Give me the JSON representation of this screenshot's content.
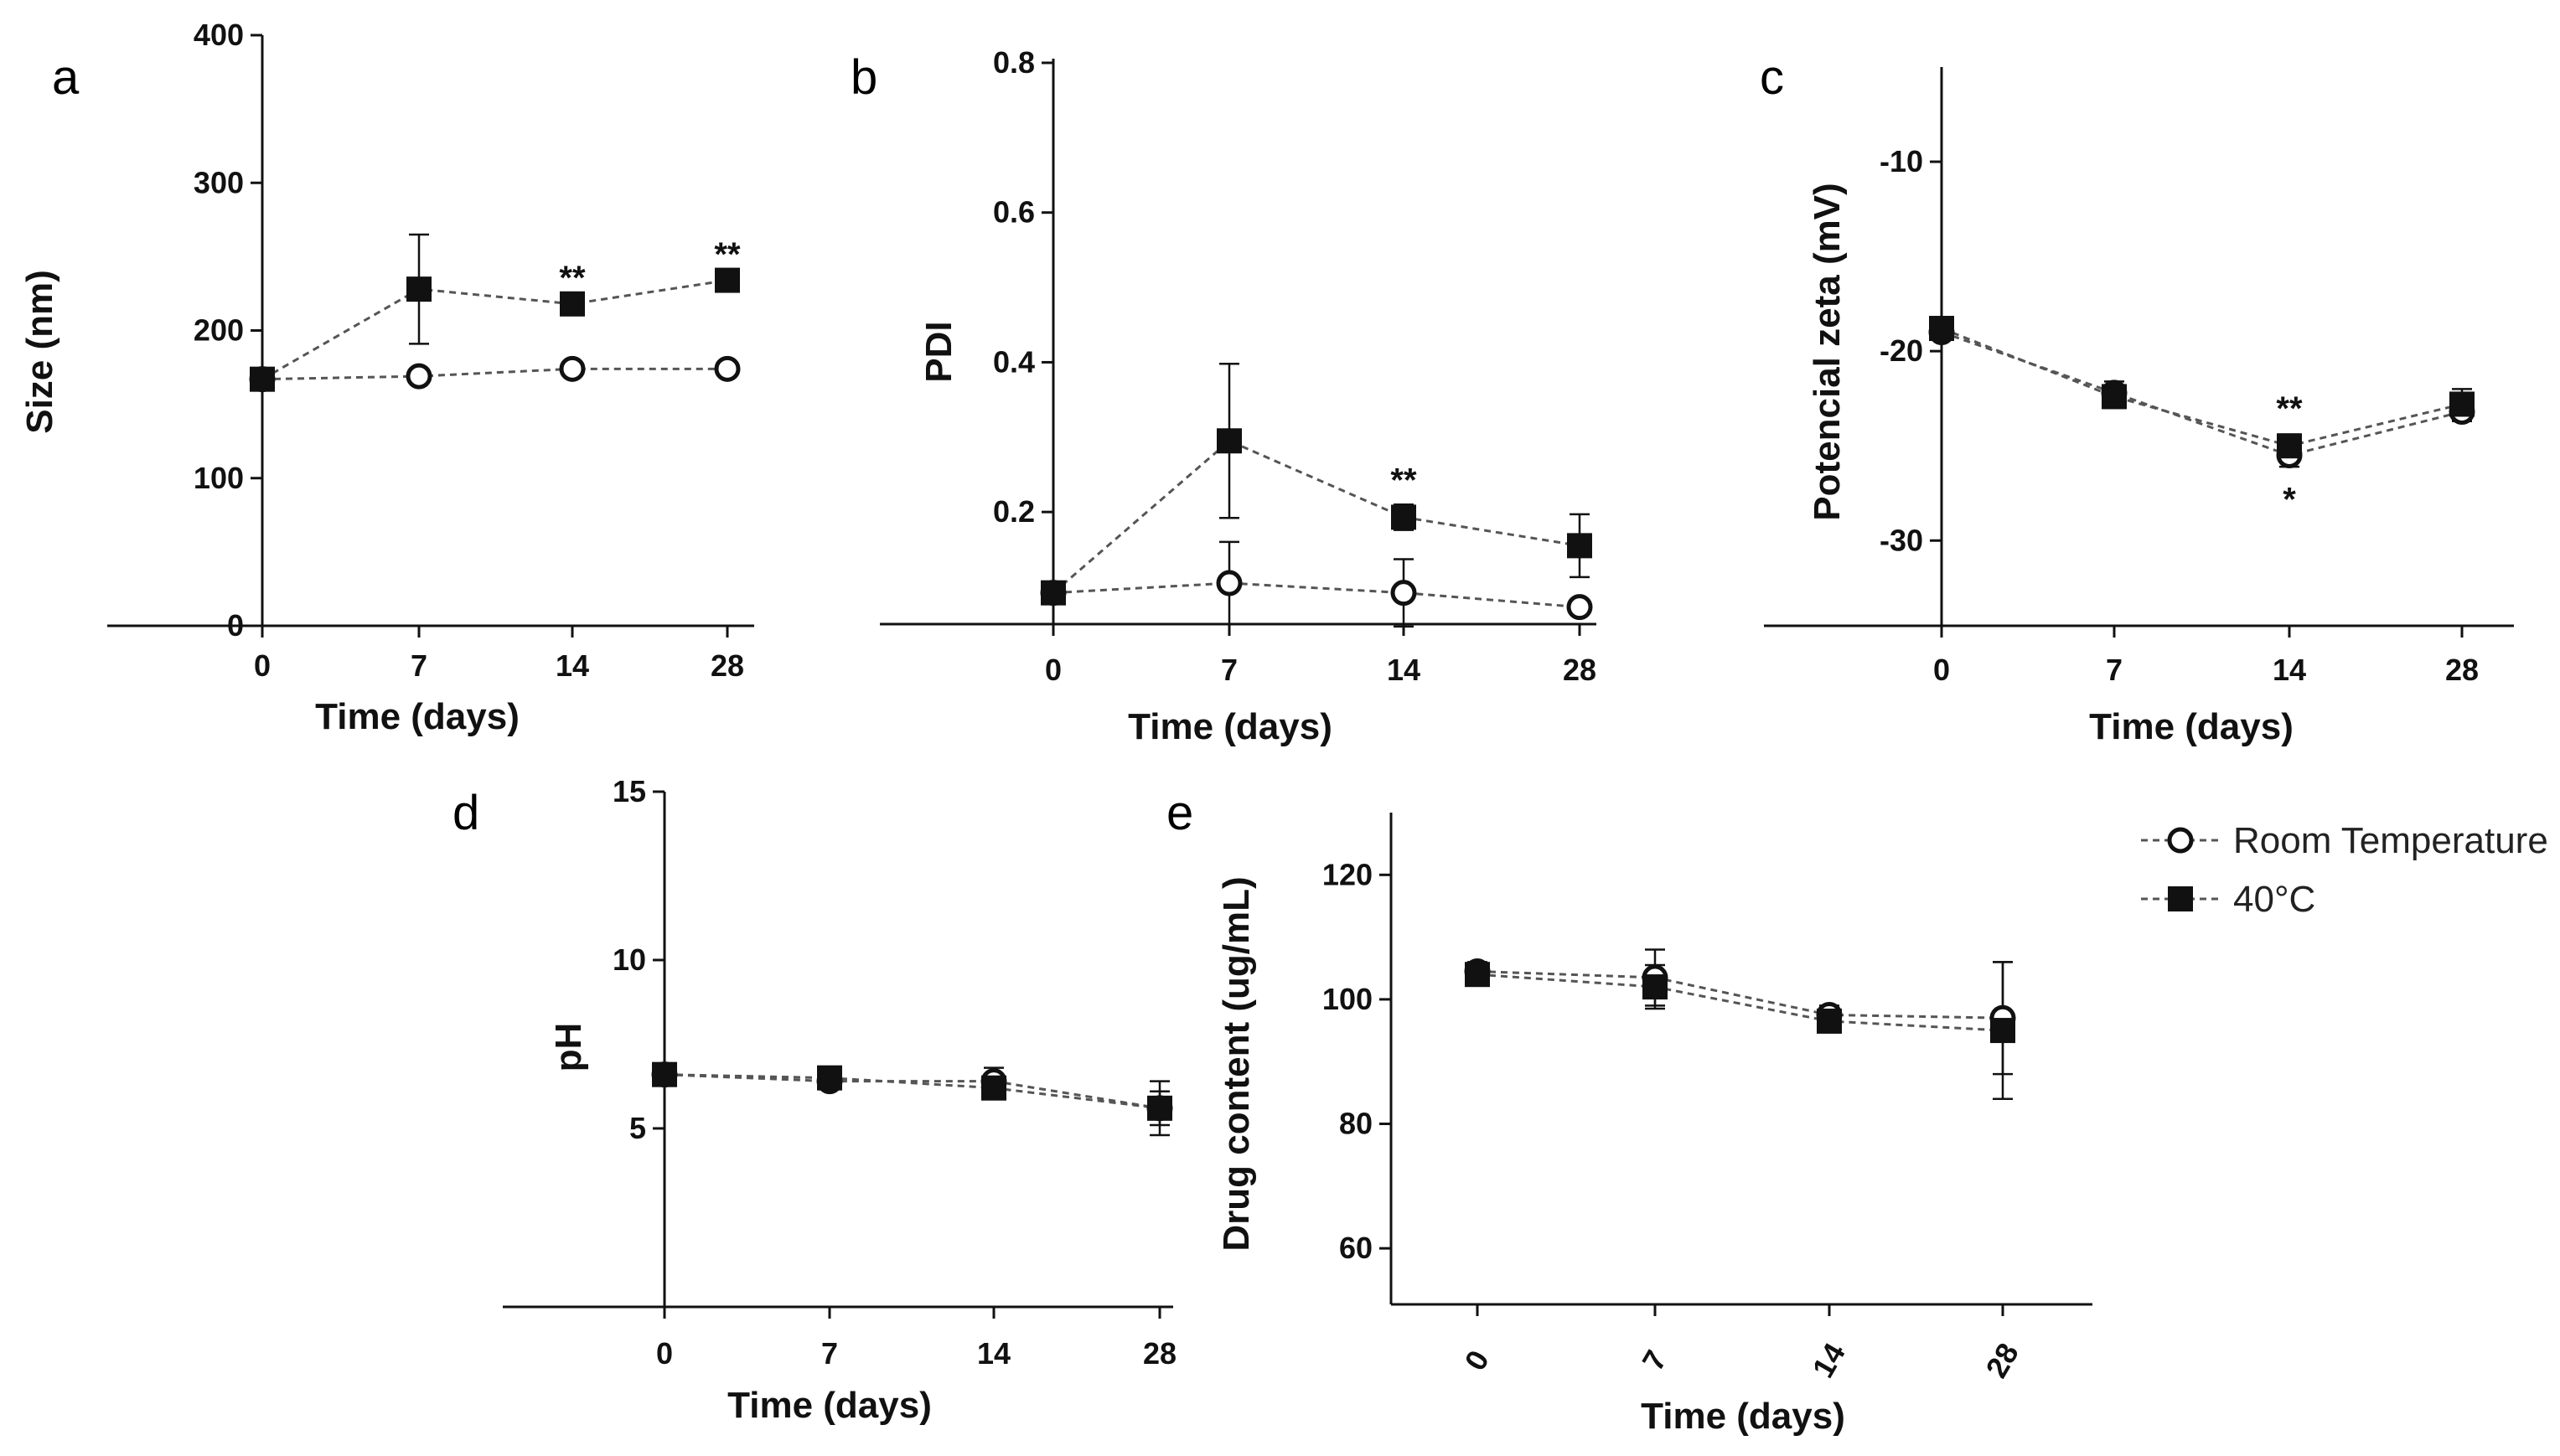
{
  "legend": {
    "entries": [
      {
        "name": "Room Temperature",
        "marker": "open-circle"
      },
      {
        "name": "40°C",
        "marker": "filled-square"
      }
    ]
  },
  "colors": {
    "ink": "#111111",
    "dash": "#555555",
    "background": "#ffffff"
  },
  "chart_data": [
    {
      "panel": "a",
      "type": "line",
      "title": "",
      "xlabel": "Time (days)",
      "ylabel": "Size (nm)",
      "categories": [
        "0",
        "7",
        "14",
        "28"
      ],
      "ylim": [
        0,
        400
      ],
      "yticks": [
        0,
        100,
        200,
        300,
        400
      ],
      "ytick_labels": [
        "0",
        "100",
        "200",
        "300",
        "400"
      ],
      "series": [
        {
          "name": "Room Temperature",
          "marker": "circle",
          "values": [
            167,
            169,
            174,
            174
          ],
          "errors": [
            0,
            0,
            0,
            0
          ]
        },
        {
          "name": "40°C",
          "marker": "square",
          "values": [
            167,
            228,
            218,
            234
          ],
          "errors": [
            0,
            37,
            0,
            0
          ]
        }
      ],
      "annotations": [
        {
          "category": "14",
          "text": "**",
          "series": "40°C",
          "offset_value": 18
        },
        {
          "category": "28",
          "text": "**",
          "series": "40°C",
          "offset_value": 18
        }
      ]
    },
    {
      "panel": "b",
      "type": "line",
      "title": "",
      "xlabel": "Time (days)",
      "ylabel": "PDI",
      "categories": [
        "0",
        "7",
        "14",
        "28"
      ],
      "ylim": [
        0.02,
        0.8
      ],
      "yticks": [
        0.2,
        0.4,
        0.6,
        0.8
      ],
      "ytick_labels": [
        "0.2",
        "0.4",
        "0.6",
        "0.8"
      ],
      "series": [
        {
          "name": "Room Temperature",
          "marker": "circle",
          "values": [
            0.092,
            0.105,
            0.092,
            0.073
          ],
          "errors": [
            0,
            0.055,
            0.045,
            0
          ]
        },
        {
          "name": "40°C",
          "marker": "square",
          "values": [
            0.092,
            0.295,
            0.193,
            0.155
          ],
          "errors": [
            0,
            0.103,
            0.017,
            0.042
          ]
        }
      ],
      "annotations": [
        {
          "category": "14",
          "text": "**",
          "series": "40°C",
          "offset_value": 0.05
        }
      ]
    },
    {
      "panel": "c",
      "type": "line",
      "title": "",
      "xlabel": "Time (days)",
      "ylabel": "Potencial zeta (mV)",
      "categories": [
        "0",
        "7",
        "14",
        "28"
      ],
      "ylim": [
        -34.5,
        -5
      ],
      "yticks": [
        -30,
        -20,
        -10
      ],
      "ytick_labels": [
        "-30",
        "-20",
        "-10"
      ],
      "series": [
        {
          "name": "Room Temperature",
          "marker": "circle",
          "values": [
            -19,
            -22.2,
            -25.5,
            -23.2
          ],
          "errors": [
            0,
            0.6,
            0.6,
            0.5
          ]
        },
        {
          "name": "40°C",
          "marker": "square",
          "values": [
            -18.8,
            -22.4,
            -25.0,
            -22.8
          ],
          "errors": [
            0,
            0.6,
            0.6,
            0.8
          ]
        }
      ],
      "annotations": [
        {
          "category": "14",
          "text": "**",
          "series": "40°C",
          "offset_value": 2.0
        },
        {
          "category": "14",
          "text": "*",
          "series": "Room Temperature",
          "offset_value": -2.3
        }
      ]
    },
    {
      "panel": "d",
      "type": "line",
      "title": "",
      "xlabel": "Time (days)",
      "ylabel": "pH",
      "categories": [
        "0",
        "7",
        "14",
        "28"
      ],
      "ylim": [
        -0.3,
        15
      ],
      "yticks": [
        5,
        10,
        15
      ],
      "ytick_labels": [
        "5",
        "10",
        "15"
      ],
      "series": [
        {
          "name": "Room Temperature",
          "marker": "circle",
          "values": [
            6.6,
            6.4,
            6.4,
            5.6
          ],
          "errors": [
            0,
            0,
            0.4,
            0.8
          ]
        },
        {
          "name": "40°C",
          "marker": "square",
          "values": [
            6.6,
            6.5,
            6.2,
            5.6
          ],
          "errors": [
            0,
            0.2,
            0.2,
            0.5
          ]
        }
      ],
      "annotations": []
    },
    {
      "panel": "e",
      "type": "line",
      "title": "",
      "xlabel": "Time (days)",
      "ylabel": "Drug content (ug/mL)",
      "categories": [
        "0",
        "7",
        "14",
        "28"
      ],
      "xtick_rotation": -60,
      "ylim": [
        51,
        130
      ],
      "yticks": [
        60,
        80,
        100,
        120
      ],
      "ytick_labels": [
        "60",
        "80",
        "100",
        "120"
      ],
      "series": [
        {
          "name": "Room Temperature",
          "marker": "circle",
          "values": [
            104.5,
            103.5,
            97.5,
            97.0
          ],
          "errors": [
            1.5,
            4.5,
            1.5,
            9
          ]
        },
        {
          "name": "40°C",
          "marker": "square",
          "values": [
            104.0,
            102.0,
            96.5,
            95.0
          ],
          "errors": [
            1.5,
            3.5,
            1.5,
            11
          ]
        }
      ],
      "annotations": []
    }
  ]
}
